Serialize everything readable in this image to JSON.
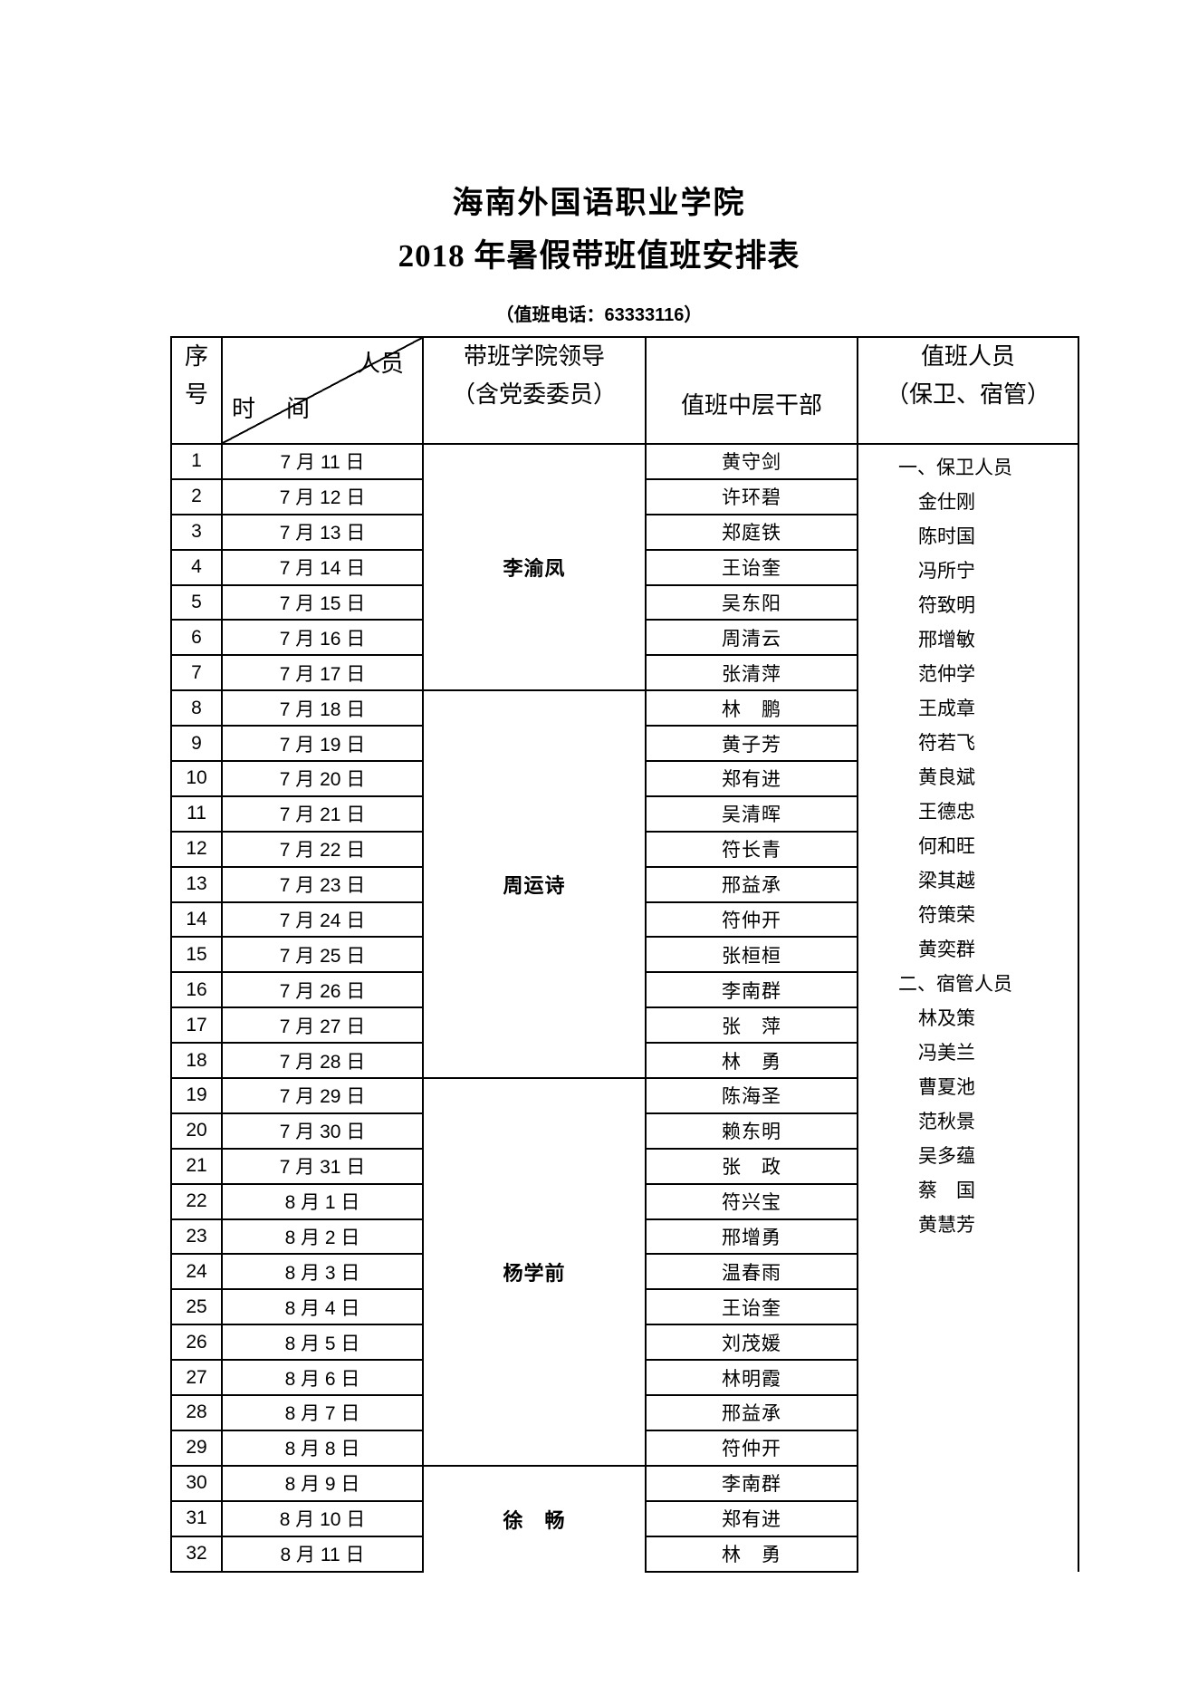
{
  "page": {
    "title": "海南外国语职业学院",
    "subtitle": "2018 年暑假带班值班安排表",
    "phone_note": "（值班电话：63333116）",
    "ink_color": "#000000",
    "paper_color": "#ffffff"
  },
  "table": {
    "header": {
      "index_lines": [
        "序",
        "号"
      ],
      "diagonal_top_right": "人员",
      "diagonal_bottom_left": "时　间",
      "leader_lines": [
        "带班学院领导",
        "（含党委委员）"
      ],
      "cadre": "值班中层干部",
      "duty_lines": [
        "值班人员",
        "（保卫、宿管）"
      ]
    },
    "rows": [
      {
        "no": "1",
        "date": "7 月 11 日",
        "cadre": "黄守剑"
      },
      {
        "no": "2",
        "date": "7 月 12 日",
        "cadre": "许环碧"
      },
      {
        "no": "3",
        "date": "7 月 13 日",
        "cadre": "郑庭铁"
      },
      {
        "no": "4",
        "date": "7 月 14 日",
        "cadre": "王诒奎"
      },
      {
        "no": "5",
        "date": "7 月 15 日",
        "cadre": "吴东阳"
      },
      {
        "no": "6",
        "date": "7 月 16 日",
        "cadre": "周清云"
      },
      {
        "no": "7",
        "date": "7 月 17 日",
        "cadre": "张清萍"
      },
      {
        "no": "8",
        "date": "7 月 18 日",
        "cadre": "林　鹏"
      },
      {
        "no": "9",
        "date": "7 月 19 日",
        "cadre": "黄子芳"
      },
      {
        "no": "10",
        "date": "7 月 20 日",
        "cadre": "郑有进"
      },
      {
        "no": "11",
        "date": "7 月 21 日",
        "cadre": "吴清晖"
      },
      {
        "no": "12",
        "date": "7 月 22 日",
        "cadre": "符长青"
      },
      {
        "no": "13",
        "date": "7 月 23 日",
        "cadre": "邢益承"
      },
      {
        "no": "14",
        "date": "7 月 24 日",
        "cadre": "符仲开"
      },
      {
        "no": "15",
        "date": "7 月 25 日",
        "cadre": "张桓桓"
      },
      {
        "no": "16",
        "date": "7 月 26 日",
        "cadre": "李南群"
      },
      {
        "no": "17",
        "date": "7 月 27 日",
        "cadre": "张　萍"
      },
      {
        "no": "18",
        "date": "7 月 28 日",
        "cadre": "林　勇"
      },
      {
        "no": "19",
        "date": "7 月 29 日",
        "cadre": "陈海圣"
      },
      {
        "no": "20",
        "date": "7 月 30 日",
        "cadre": "赖东明"
      },
      {
        "no": "21",
        "date": "7 月 31 日",
        "cadre": "张　政"
      },
      {
        "no": "22",
        "date": "8 月 1 日",
        "cadre": "符兴宝"
      },
      {
        "no": "23",
        "date": "8 月 2 日",
        "cadre": "邢增勇"
      },
      {
        "no": "24",
        "date": "8 月 3 日",
        "cadre": "温春雨"
      },
      {
        "no": "25",
        "date": "8 月 4 日",
        "cadre": "王诒奎"
      },
      {
        "no": "26",
        "date": "8 月 5 日",
        "cadre": "刘茂媛"
      },
      {
        "no": "27",
        "date": "8 月 6 日",
        "cadre": "林明霞"
      },
      {
        "no": "28",
        "date": "8 月 7 日",
        "cadre": "邢益承"
      },
      {
        "no": "29",
        "date": "8 月 8 日",
        "cadre": "符仲开"
      },
      {
        "no": "30",
        "date": "8 月 9 日",
        "cadre": "李南群"
      },
      {
        "no": "31",
        "date": "8 月 10 日",
        "cadre": "郑有进"
      },
      {
        "no": "32",
        "date": "8 月 11 日",
        "cadre": "林　勇"
      }
    ],
    "leader_groups": [
      {
        "name": "李渝凤",
        "start": 1,
        "span": 7,
        "open_bottom": false
      },
      {
        "name": "周运诗",
        "start": 8,
        "span": 11,
        "open_bottom": false
      },
      {
        "name": "杨学前",
        "start": 19,
        "span": 11,
        "open_bottom": false
      },
      {
        "name": "徐　畅",
        "start": 30,
        "span": 3,
        "open_bottom": true
      }
    ],
    "duty_personnel": {
      "sections": [
        {
          "header": "一、保卫人员",
          "members": [
            "金仕刚",
            "陈时国",
            "冯所宁",
            "符致明",
            "邢增敏",
            "范仲学",
            "王成章",
            "符若飞",
            "黄良斌",
            "王德忠",
            "何和旺",
            "梁其越",
            "符策荣",
            "黄奕群"
          ]
        },
        {
          "header": "二、宿管人员",
          "members": [
            "林及策",
            "冯美兰",
            "曹夏池",
            "范秋景",
            "吴多蕴",
            "蔡　国",
            "黄慧芳"
          ]
        }
      ]
    }
  }
}
